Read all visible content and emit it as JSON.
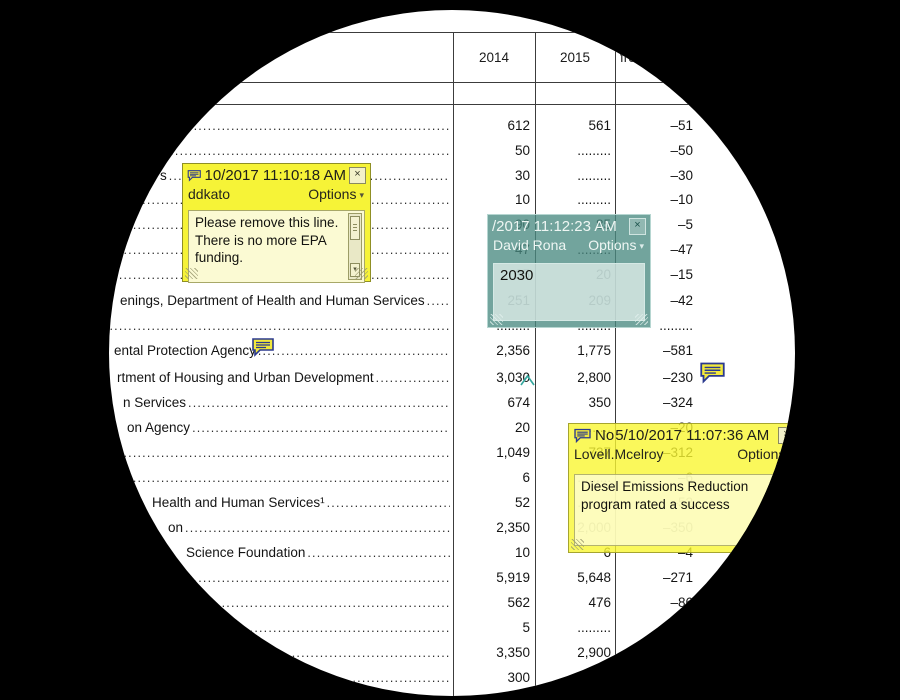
{
  "table": {
    "col_headers": {
      "c1": "2014",
      "c2": "2015",
      "c3_partial": "fro"
    },
    "rows": [
      {
        "label": "",
        "c1": "612",
        "c2": "561",
        "c3": "–51"
      },
      {
        "label": "",
        "c1": "50",
        "c2": ".........",
        "c3": "–50"
      },
      {
        "label": "s",
        "indent": 160,
        "c1": "30",
        "c2": ".........",
        "c3": "–30"
      },
      {
        "label": "",
        "c1": "10",
        "c2": ".........",
        "c3": "–10"
      },
      {
        "label": "",
        "c1": "90",
        "c2": "85",
        "c3": "–5"
      },
      {
        "label": "",
        "c1": "47",
        "c2": ".........",
        "c3": "–47"
      },
      {
        "label": "",
        "c1": "35",
        "c2": "20",
        "c3": "–15"
      },
      {
        "label": "enings, Department of Health and Human Services",
        "indent": 120,
        "c1": "251",
        "c2": "209",
        "c3": "–42"
      },
      {
        "label": "",
        "c1": ".........",
        "c2": ".........",
        "c3": "........."
      },
      {
        "label": "ental Protection Agency",
        "indent": 114,
        "c1": "2,356",
        "c2": "1,775",
        "c3": "–581"
      },
      {
        "label": "rtment of Housing and Urban Development",
        "indent": 117,
        "c1": "3,030",
        "c2": "2,800",
        "c3": "–230"
      },
      {
        "label": "n Services",
        "indent": 123,
        "c1": "674",
        "c2": "350",
        "c3": "–324"
      },
      {
        "label": "on Agency",
        "indent": 127,
        "c1": "20",
        "c2": ".........",
        "c3": "–20"
      },
      {
        "label": "",
        "c1": "1,049",
        "c2": "737",
        "c3": "–312"
      },
      {
        "label": "",
        "c1": "6",
        "c2": ".........",
        "c3": "–6"
      },
      {
        "label": "Health and Human Services¹",
        "indent": 152,
        "c1": "52",
        "c2": ".........",
        "c3": "–52"
      },
      {
        "label": "on",
        "indent": 168,
        "c1": "2,350",
        "c2": "2,000",
        "c3": "–350"
      },
      {
        "label": "Science Foundation",
        "indent": 186,
        "c1": "10",
        "c2": "6",
        "c3": "–4"
      },
      {
        "label": "",
        "c1": "5,919",
        "c2": "5,648",
        "c3": "–271"
      },
      {
        "label": "",
        "c1": "562",
        "c2": "476",
        "c3": "–86"
      },
      {
        "label": "",
        "c1": "5",
        "c2": ".........",
        "c3": ""
      },
      {
        "label": "",
        "c1": "3,350",
        "c2": "2,900",
        "c3": ""
      },
      {
        "label": "",
        "c1": "300",
        "c2": "",
        "c3": ""
      }
    ]
  },
  "notes": {
    "note1": {
      "datetime": "10/2017 11:10:18 AM",
      "author": "ddkato",
      "options_label": "Options",
      "options_arrow": "▾",
      "close_label": "×",
      "body": "Please remove this line.  There is no more EPA funding."
    },
    "note2": {
      "datetime": "/2017 11:12:23 AM",
      "author": "David Rona",
      "options_label": "Options",
      "options_arrow": "▾",
      "close_label": "×",
      "body": "2030"
    },
    "note3": {
      "subject": "No",
      "datetime": "5/10/2017 11:07:36 AM",
      "author": "Lovell.Mcelroy",
      "options_label": "Options",
      "options_arrow": "▾",
      "close_label": "×",
      "body_line1": "Diesel Emissions Reduction",
      "body_line2": "program rated a success"
    }
  },
  "icons": {
    "comment_icon": "yellow speech bubble annotation",
    "caret_icon": "teal insertion caret annotation"
  },
  "colors": {
    "mask_bg": "#000000",
    "page_bg": "#ffffff",
    "note_yellow": "#f6f337",
    "note_yellow_body": "#fbfad3",
    "note_teal": "#4a8a82",
    "caret_teal": "#35a79e",
    "comment_icon_fill": "#f2e93c",
    "comment_icon_stroke": "#2b3a8f",
    "table_line": "#3c3c3c",
    "text": "#141414"
  }
}
